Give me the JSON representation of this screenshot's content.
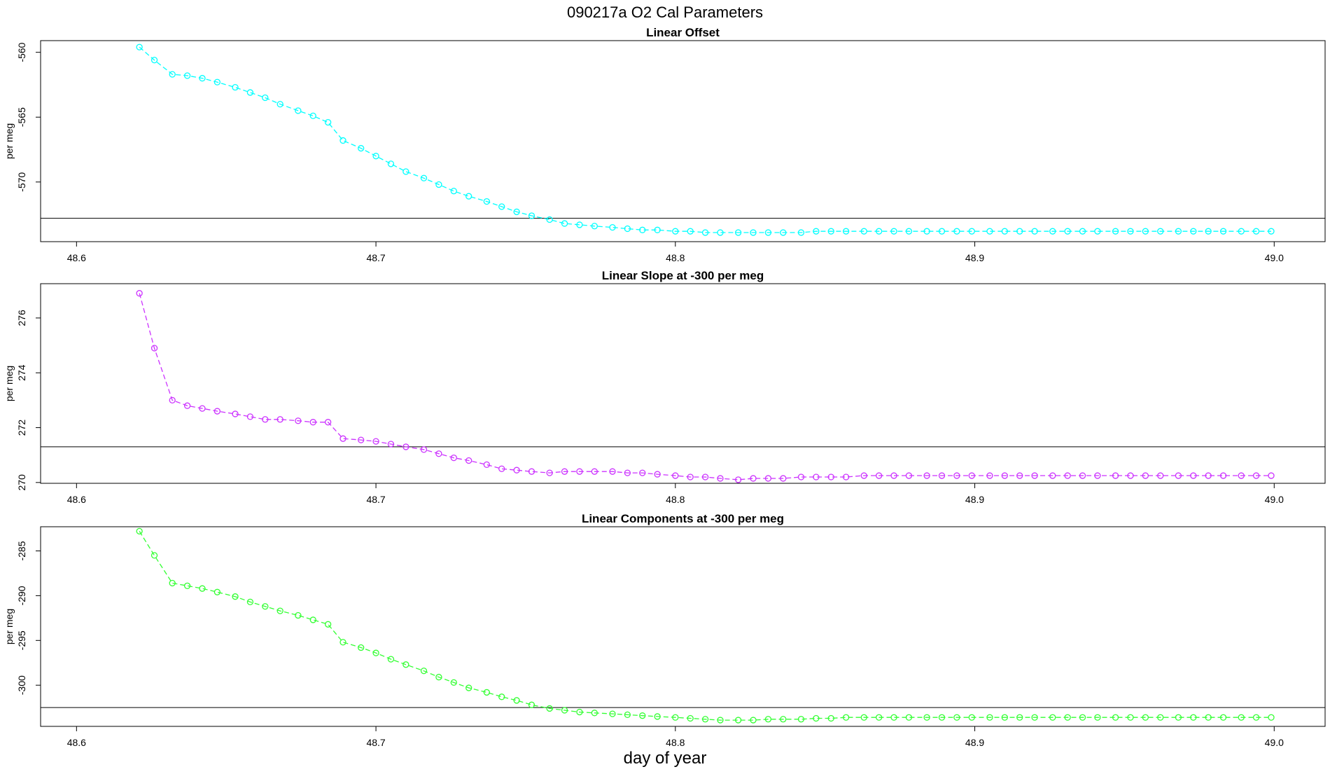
{
  "figure": {
    "title": "090217a   O2 Cal Parameters",
    "xlabel": "day of year"
  },
  "chart_data": [
    {
      "type": "line",
      "title": "Linear Offset",
      "xlabel": "",
      "ylabel": "per meg",
      "xlim": [
        48.588,
        49.017
      ],
      "ylim": [
        -574.6,
        -559.1
      ],
      "xticks": [
        48.6,
        48.7,
        48.8,
        48.9,
        49.0
      ],
      "xticklabels": [
        "48.6",
        "48.7",
        "48.8",
        "48.9",
        "49.0"
      ],
      "yticks": [
        -560,
        -565,
        -570
      ],
      "yticklabels": [
        "-560",
        "-565",
        "-570"
      ],
      "reference_line": -572.8,
      "color": "#00ffff",
      "series": [
        {
          "x": [
            48.621,
            48.626,
            48.632,
            48.637,
            48.642,
            48.647,
            48.653,
            48.658,
            48.663,
            48.668,
            48.674,
            48.679,
            48.684,
            48.689,
            48.695,
            48.7,
            48.705,
            48.71,
            48.716,
            48.721,
            48.726,
            48.731,
            48.737,
            48.742,
            48.747,
            48.752,
            48.758,
            48.763,
            48.768,
            48.773,
            48.779,
            48.784,
            48.789,
            48.794,
            48.8,
            48.805,
            48.81,
            48.815,
            48.821,
            48.826,
            48.831,
            48.836,
            48.842,
            48.847,
            48.852,
            48.857,
            48.863,
            48.868,
            48.873,
            48.878,
            48.884,
            48.889,
            48.894,
            48.899,
            48.905,
            48.91,
            48.915,
            48.92,
            48.926,
            48.931,
            48.936,
            48.941,
            48.947,
            48.952,
            48.957,
            48.962,
            48.968,
            48.973,
            48.978,
            48.983,
            48.989,
            48.994,
            48.999
          ],
          "values": [
            -559.6,
            -560.6,
            -561.7,
            -561.8,
            -562.0,
            -562.3,
            -562.7,
            -563.1,
            -563.5,
            -564.0,
            -564.5,
            -564.9,
            -565.4,
            -566.8,
            -567.4,
            -568.0,
            -568.6,
            -569.2,
            -569.7,
            -570.2,
            -570.7,
            -571.1,
            -571.5,
            -571.9,
            -572.3,
            -572.6,
            -572.9,
            -573.2,
            -573.3,
            -573.4,
            -573.5,
            -573.6,
            -573.7,
            -573.7,
            -573.8,
            -573.8,
            -573.9,
            -573.9,
            -573.9,
            -573.9,
            -573.9,
            -573.9,
            -573.9,
            -573.8,
            -573.8,
            -573.8,
            -573.8,
            -573.8,
            -573.8,
            -573.8,
            -573.8,
            -573.8,
            -573.8,
            -573.8,
            -573.8,
            -573.8,
            -573.8,
            -573.8,
            -573.8,
            -573.8,
            -573.8,
            -573.8,
            -573.8,
            -573.8,
            -573.8,
            -573.8,
            -573.8,
            -573.8,
            -573.8,
            -573.8,
            -573.8,
            -573.8,
            -573.8
          ]
        }
      ]
    },
    {
      "type": "line",
      "title": "Linear Slope at -300 per meg",
      "xlabel": "",
      "ylabel": "per meg",
      "xlim": [
        48.588,
        49.017
      ],
      "ylim": [
        269.97,
        277.25
      ],
      "xticks": [
        48.6,
        48.7,
        48.8,
        48.9,
        49.0
      ],
      "xticklabels": [
        "48.6",
        "48.7",
        "48.8",
        "48.9",
        "49.0"
      ],
      "yticks": [
        270,
        272,
        274,
        276
      ],
      "yticklabels": [
        "270",
        "272",
        "274",
        "276"
      ],
      "reference_line": 271.3,
      "color": "#cc33ff",
      "series": [
        {
          "x": [
            48.621,
            48.626,
            48.632,
            48.637,
            48.642,
            48.647,
            48.653,
            48.658,
            48.663,
            48.668,
            48.674,
            48.679,
            48.684,
            48.689,
            48.695,
            48.7,
            48.705,
            48.71,
            48.716,
            48.721,
            48.726,
            48.731,
            48.737,
            48.742,
            48.747,
            48.752,
            48.758,
            48.763,
            48.768,
            48.773,
            48.779,
            48.784,
            48.789,
            48.794,
            48.8,
            48.805,
            48.81,
            48.815,
            48.821,
            48.826,
            48.831,
            48.836,
            48.842,
            48.847,
            48.852,
            48.857,
            48.863,
            48.868,
            48.873,
            48.878,
            48.884,
            48.889,
            48.894,
            48.899,
            48.905,
            48.91,
            48.915,
            48.92,
            48.926,
            48.931,
            48.936,
            48.941,
            48.947,
            48.952,
            48.957,
            48.962,
            48.968,
            48.973,
            48.978,
            48.983,
            48.989,
            48.994,
            48.999
          ],
          "values": [
            276.9,
            274.9,
            273.0,
            272.8,
            272.7,
            272.6,
            272.5,
            272.4,
            272.3,
            272.3,
            272.25,
            272.2,
            272.2,
            271.6,
            271.55,
            271.5,
            271.4,
            271.3,
            271.2,
            271.05,
            270.9,
            270.8,
            270.65,
            270.5,
            270.45,
            270.4,
            270.35,
            270.4,
            270.4,
            270.4,
            270.4,
            270.35,
            270.35,
            270.3,
            270.25,
            270.2,
            270.2,
            270.15,
            270.1,
            270.15,
            270.15,
            270.15,
            270.2,
            270.2,
            270.2,
            270.2,
            270.25,
            270.25,
            270.25,
            270.25,
            270.25,
            270.25,
            270.25,
            270.25,
            270.25,
            270.25,
            270.25,
            270.25,
            270.25,
            270.25,
            270.25,
            270.25,
            270.25,
            270.25,
            270.25,
            270.25,
            270.25,
            270.25,
            270.25,
            270.25,
            270.25,
            270.25,
            270.25
          ]
        }
      ]
    },
    {
      "type": "line",
      "title": "Linear Components at -300 per meg",
      "xlabel": "",
      "ylabel": "per meg",
      "xlim": [
        48.588,
        49.017
      ],
      "ylim": [
        -304.6,
        -282.3
      ],
      "xticks": [
        48.6,
        48.7,
        48.8,
        48.9,
        49.0
      ],
      "xticklabels": [
        "48.6",
        "48.7",
        "48.8",
        "48.9",
        "49.0"
      ],
      "yticks": [
        -285,
        -290,
        -295,
        -300
      ],
      "yticklabels": [
        "-285",
        "-290",
        "-295",
        "-300"
      ],
      "reference_line": -302.5,
      "color": "#33ff33",
      "series": [
        {
          "x": [
            48.621,
            48.626,
            48.632,
            48.637,
            48.642,
            48.647,
            48.653,
            48.658,
            48.663,
            48.668,
            48.674,
            48.679,
            48.684,
            48.689,
            48.695,
            48.7,
            48.705,
            48.71,
            48.716,
            48.721,
            48.726,
            48.731,
            48.737,
            48.742,
            48.747,
            48.752,
            48.758,
            48.763,
            48.768,
            48.773,
            48.779,
            48.784,
            48.789,
            48.794,
            48.8,
            48.805,
            48.81,
            48.815,
            48.821,
            48.826,
            48.831,
            48.836,
            48.842,
            48.847,
            48.852,
            48.857,
            48.863,
            48.868,
            48.873,
            48.878,
            48.884,
            48.889,
            48.894,
            48.899,
            48.905,
            48.91,
            48.915,
            48.92,
            48.926,
            48.931,
            48.936,
            48.941,
            48.947,
            48.952,
            48.957,
            48.962,
            48.968,
            48.973,
            48.978,
            48.983,
            48.989,
            48.994,
            48.999
          ],
          "values": [
            -282.8,
            -285.5,
            -288.6,
            -288.9,
            -289.2,
            -289.6,
            -290.1,
            -290.7,
            -291.2,
            -291.7,
            -292.2,
            -292.7,
            -293.2,
            -295.2,
            -295.8,
            -296.4,
            -297.1,
            -297.7,
            -298.4,
            -299.1,
            -299.7,
            -300.3,
            -300.8,
            -301.3,
            -301.7,
            -302.2,
            -302.6,
            -302.8,
            -303.0,
            -303.1,
            -303.2,
            -303.3,
            -303.4,
            -303.5,
            -303.6,
            -303.7,
            -303.8,
            -303.9,
            -303.9,
            -303.9,
            -303.8,
            -303.8,
            -303.8,
            -303.7,
            -303.7,
            -303.6,
            -303.6,
            -303.6,
            -303.6,
            -303.6,
            -303.6,
            -303.6,
            -303.6,
            -303.6,
            -303.6,
            -303.6,
            -303.6,
            -303.6,
            -303.6,
            -303.6,
            -303.6,
            -303.6,
            -303.6,
            -303.6,
            -303.6,
            -303.6,
            -303.6,
            -303.6,
            -303.6,
            -303.6,
            -303.6,
            -303.6,
            -303.6
          ]
        }
      ]
    }
  ]
}
